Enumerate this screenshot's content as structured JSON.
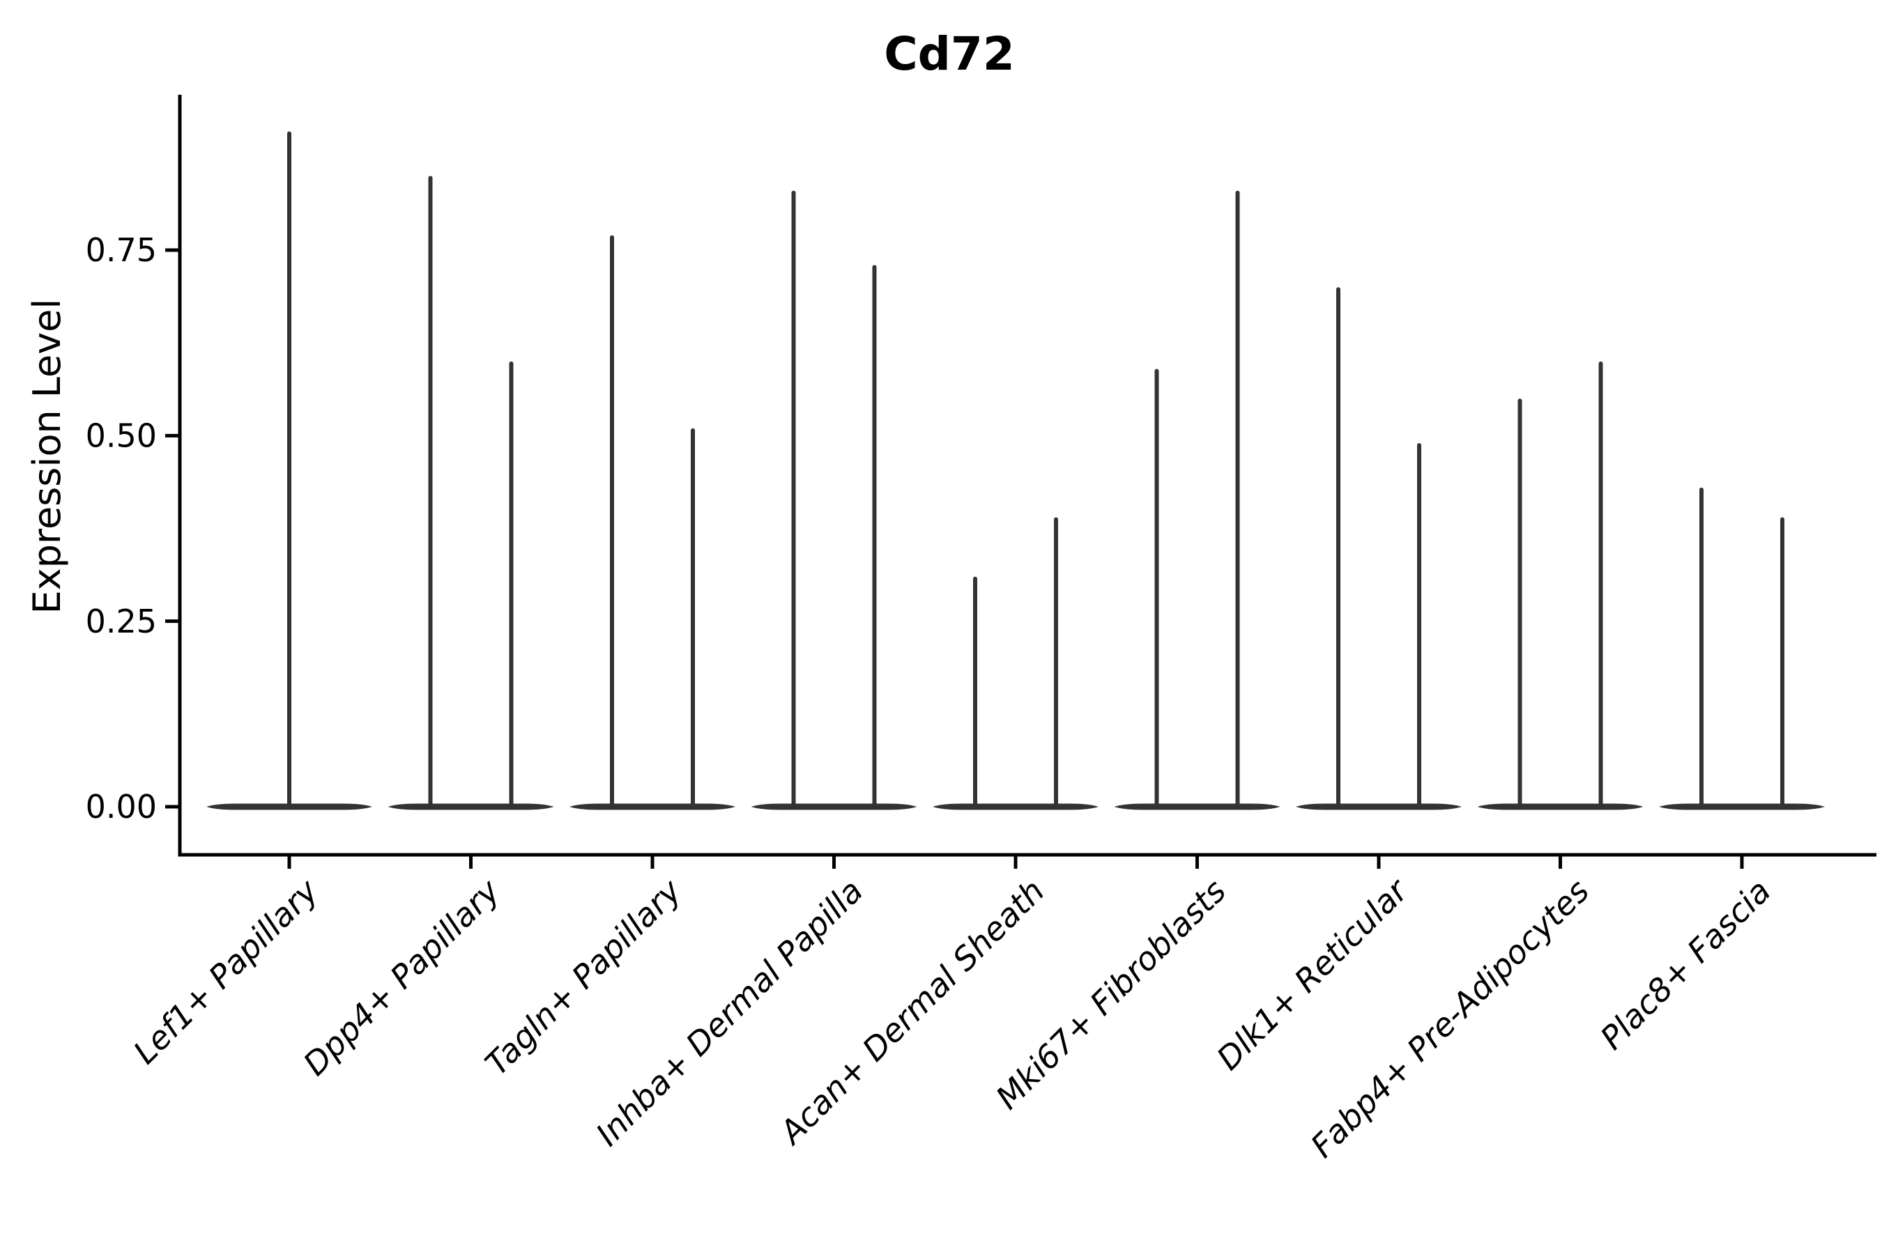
{
  "window": {
    "background": "#ffffff"
  },
  "chart_data": {
    "type": "violin",
    "title": "Cd72",
    "ylabel": "Expression Level",
    "xlabel": "",
    "grid": false,
    "legend_position": "none",
    "ylim": [
      -0.065,
      0.965
    ],
    "yticks": [
      {
        "label": "0.00",
        "value": 0.0
      },
      {
        "label": "0.25",
        "value": 0.25
      },
      {
        "label": "0.50",
        "value": 0.5
      },
      {
        "label": "0.75",
        "value": 0.75
      }
    ],
    "categories": [
      "Lef1+ Papillary",
      "Dpp4+ Papillary",
      "Tagln+ Papillary",
      "Inhba+ Dermal Papilla",
      "Acan+ Dermal Sheath",
      "Mki67+ Fibroblasts",
      "Dlk1+ Reticular",
      "Fabp4+ Pre-Adipocytes",
      "Plac8+ Fascia"
    ],
    "violins": [
      {
        "category": "Lef1+ Papillary",
        "spike_heights": [
          0.91
        ]
      },
      {
        "category": "Dpp4+ Papillary",
        "spike_heights": [
          0.85,
          0.6
        ]
      },
      {
        "category": "Tagln+ Papillary",
        "spike_heights": [
          0.77,
          0.51
        ]
      },
      {
        "category": "Inhba+ Dermal Papilla",
        "spike_heights": [
          0.83,
          0.73
        ]
      },
      {
        "category": "Acan+ Dermal Sheath",
        "spike_heights": [
          0.31,
          0.39
        ]
      },
      {
        "category": "Mki67+ Fibroblasts",
        "spike_heights": [
          0.59,
          0.83
        ]
      },
      {
        "category": "Dlk1+ Reticular",
        "spike_heights": [
          0.7,
          0.49
        ]
      },
      {
        "category": "Fabp4+ Pre-Adipocytes",
        "spike_heights": [
          0.55,
          0.6
        ]
      },
      {
        "category": "Plac8+ Fascia",
        "spike_heights": [
          0.43,
          0.39
        ]
      }
    ],
    "violin_color": "#333333",
    "axis_color": "#000000",
    "text_color": "#000000"
  }
}
